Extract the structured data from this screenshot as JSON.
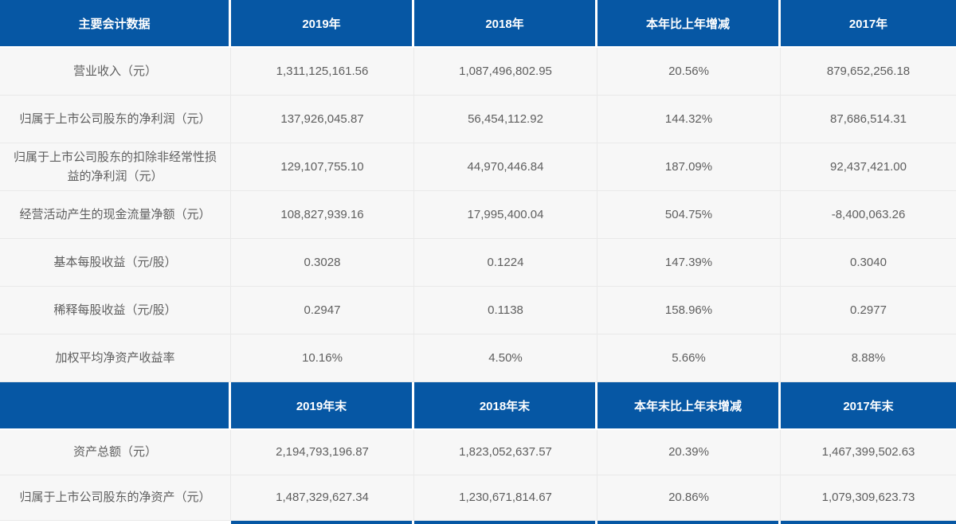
{
  "title": "主要会计数据",
  "colors": {
    "header_bg": "#0657A4",
    "header_text": "#FFFFFF",
    "row_bg": "#F7F7F7",
    "row_border": "#E9E9E9",
    "body_text": "#5E5E5E"
  },
  "sections": [
    {
      "header": [
        "主要会计数据",
        "2019年",
        "2018年",
        "本年比上年增减",
        "2017年"
      ],
      "rows": [
        [
          "营业收入（元）",
          "1,311,125,161.56",
          "1,087,496,802.95",
          "20.56%",
          "879,652,256.18"
        ],
        [
          "归属于上市公司股东的净利润（元）",
          "137,926,045.87",
          "56,454,112.92",
          "144.32%",
          "87,686,514.31"
        ],
        [
          "归属于上市公司股东的扣除非经常性损益的净利润（元）",
          "129,107,755.10",
          "44,970,446.84",
          "187.09%",
          "92,437,421.00"
        ],
        [
          "经营活动产生的现金流量净额（元）",
          "108,827,939.16",
          "17,995,400.04",
          "504.75%",
          "-8,400,063.26"
        ],
        [
          "基本每股收益（元/股）",
          "0.3028",
          "0.1224",
          "147.39%",
          "0.3040"
        ],
        [
          "稀释每股收益（元/股）",
          "0.2947",
          "0.1138",
          "158.96%",
          "0.2977"
        ],
        [
          "加权平均净资产收益率",
          "10.16%",
          "4.50%",
          "5.66%",
          "8.88%"
        ]
      ]
    },
    {
      "header": [
        "",
        "2019年末",
        "2018年末",
        "本年末比上年末增减",
        "2017年末"
      ],
      "rows": [
        [
          "资产总额（元）",
          "2,194,793,196.87",
          "1,823,052,637.57",
          "20.39%",
          "1,467,399,502.63"
        ],
        [
          "归属于上市公司股东的净资产（元）",
          "1,487,329,627.34",
          "1,230,671,814.67",
          "20.86%",
          "1,079,309,623.73"
        ]
      ]
    }
  ]
}
